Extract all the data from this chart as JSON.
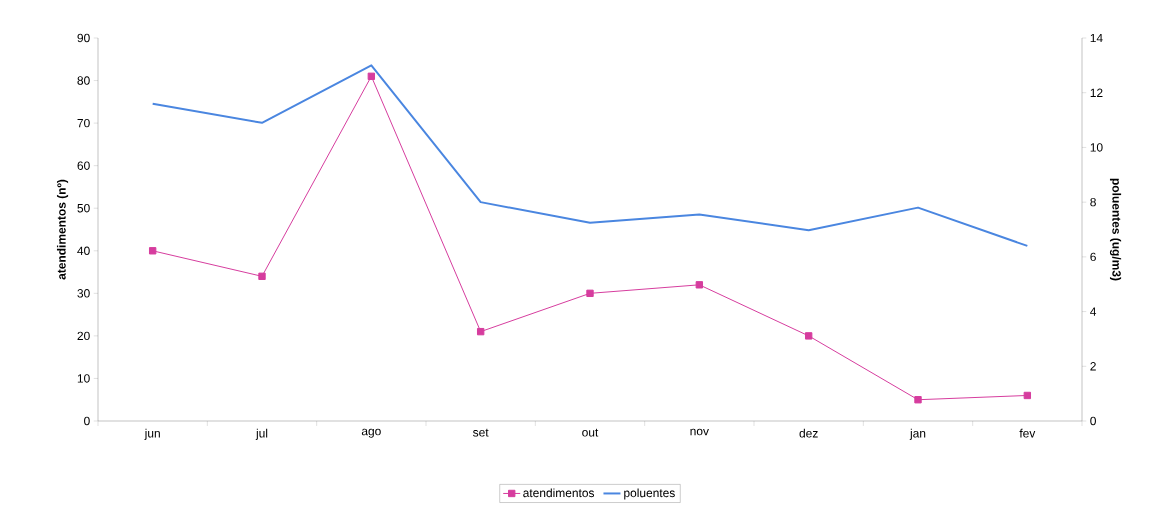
{
  "chart_data": {
    "type": "line",
    "categories": [
      "jun",
      "jul",
      "ago",
      "set",
      "out",
      "nov",
      "dez",
      "jan",
      "fev"
    ],
    "ylabel": "atendimentos (nº)",
    "y2label": "poluentes (ug/m3)",
    "ylim": [
      0,
      90
    ],
    "yticks": [
      0,
      10,
      20,
      30,
      40,
      50,
      60,
      70,
      80,
      90
    ],
    "y2lim": [
      0,
      14
    ],
    "y2ticks": [
      0,
      2,
      4,
      6,
      8,
      10,
      12,
      14
    ],
    "legend": "bottom",
    "grid": false,
    "series": [
      {
        "name": "atendimentos",
        "color": "#d63c9e",
        "marker": "square",
        "values": [
          40,
          34,
          81,
          21,
          30,
          32,
          20,
          5,
          6
        ]
      },
      {
        "name": "poluentes",
        "color": "#4a86e0",
        "marker": "none",
        "axis": "y2",
        "values": [
          11.6,
          10.9,
          13.0,
          8.0,
          7.25,
          7.55,
          6.97,
          7.8,
          6.4
        ]
      }
    ]
  }
}
